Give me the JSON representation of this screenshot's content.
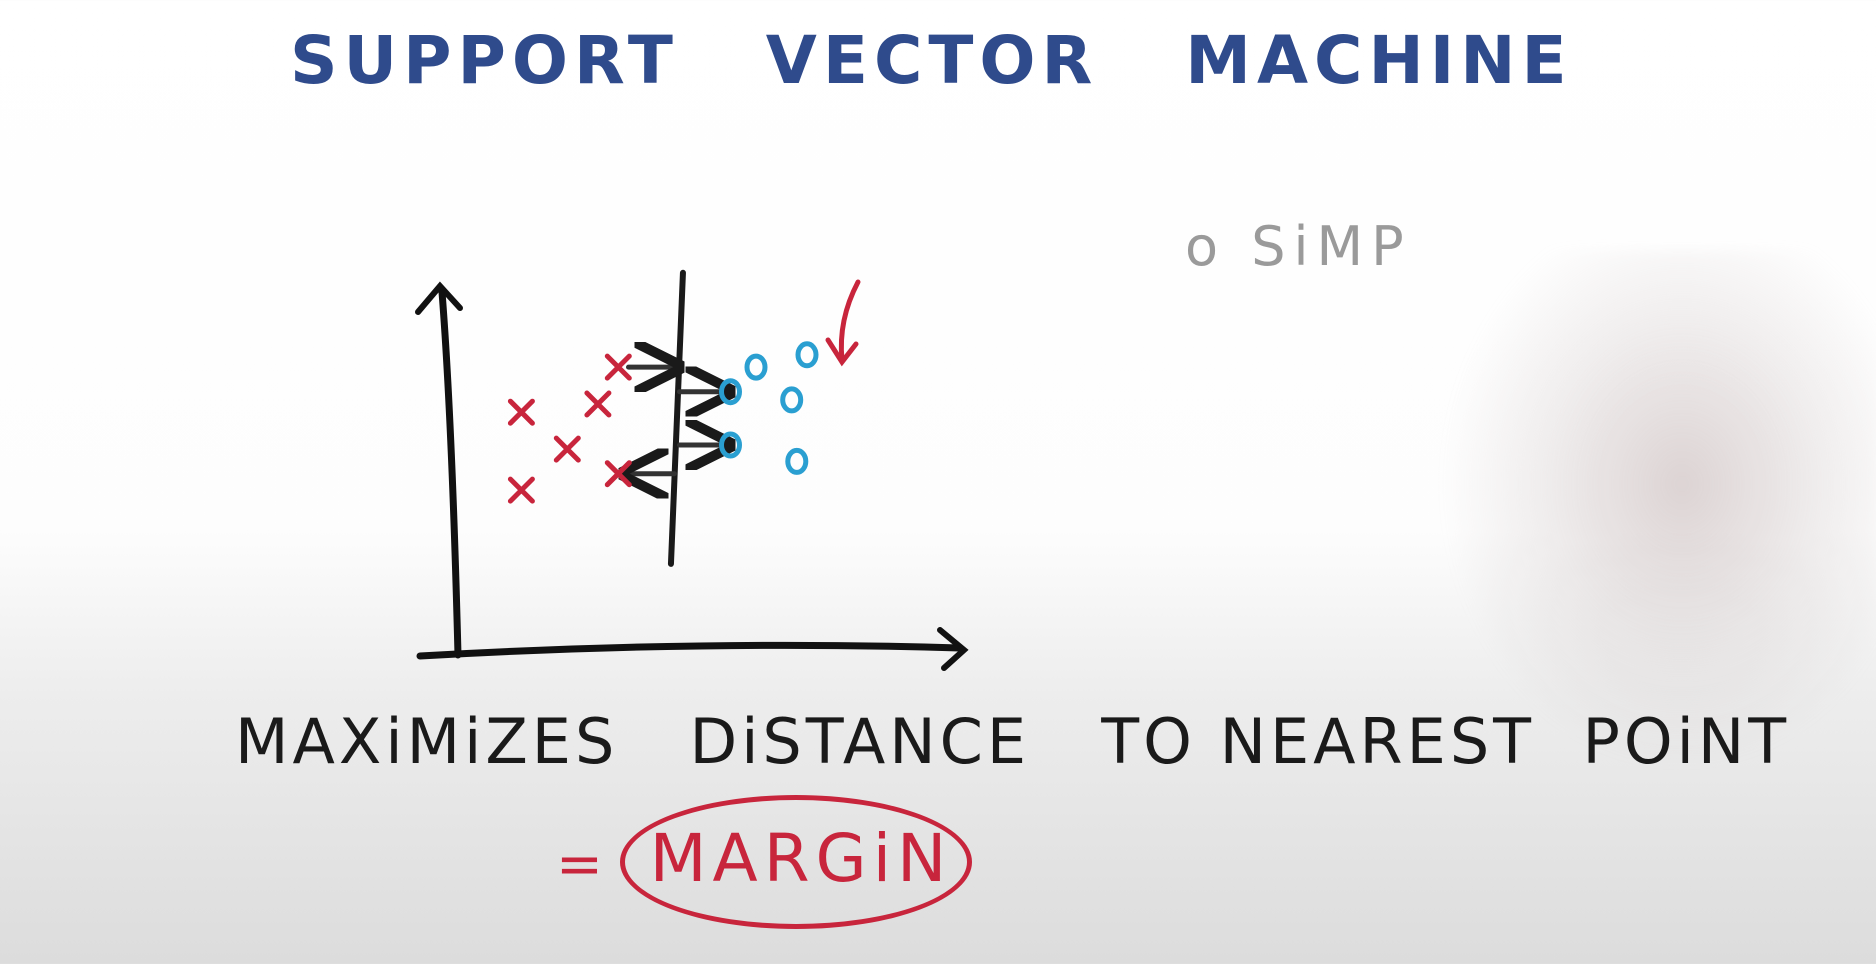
{
  "title": "SUPPORT   VECTOR   MACHINE",
  "side_note": "o SiMP",
  "caption": "MAXiMiZES   DiSTANCE   TO NEAREST  POiNT",
  "equals_sign": "=",
  "margin_label": "MARGiN",
  "colors": {
    "title": "#2f4b8c",
    "class_x": "#c8253c",
    "class_o": "#2a9fd1",
    "ink": "#1a1a1a",
    "faded": "#9a9a9a"
  },
  "chart_data": {
    "type": "scatter",
    "title": "",
    "xlabel": "",
    "ylabel": "",
    "series": [
      {
        "marker": "x",
        "color": "#c8253c",
        "points": [
          [
            1.4,
            5.8
          ],
          [
            2.3,
            4.9
          ],
          [
            2.9,
            6.0
          ],
          [
            3.3,
            6.9
          ],
          [
            1.4,
            3.9
          ],
          [
            3.3,
            4.3
          ]
        ]
      },
      {
        "marker": "o",
        "color": "#2a9fd1",
        "points": [
          [
            5.5,
            6.3
          ],
          [
            6.0,
            6.9
          ],
          [
            6.7,
            6.1
          ],
          [
            7.0,
            7.2
          ],
          [
            5.5,
            5.0
          ],
          [
            6.8,
            4.6
          ]
        ]
      }
    ],
    "boundary": {
      "x": 4.45
    },
    "margin_arrows": [
      {
        "from": [
          3.5,
          6.9
        ],
        "to": [
          4.4,
          6.9
        ],
        "direction": "to-point"
      },
      {
        "from": [
          4.5,
          6.3
        ],
        "to": [
          5.4,
          6.3
        ],
        "direction": "to-point"
      },
      {
        "from": [
          4.4,
          4.3
        ],
        "to": [
          3.5,
          4.3
        ],
        "direction": "to-point"
      },
      {
        "from": [
          4.5,
          5.0
        ],
        "to": [
          5.4,
          5.0
        ],
        "direction": "to-point"
      }
    ],
    "xlim": [
      0,
      10
    ],
    "ylim": [
      0,
      10
    ],
    "grid": false
  }
}
